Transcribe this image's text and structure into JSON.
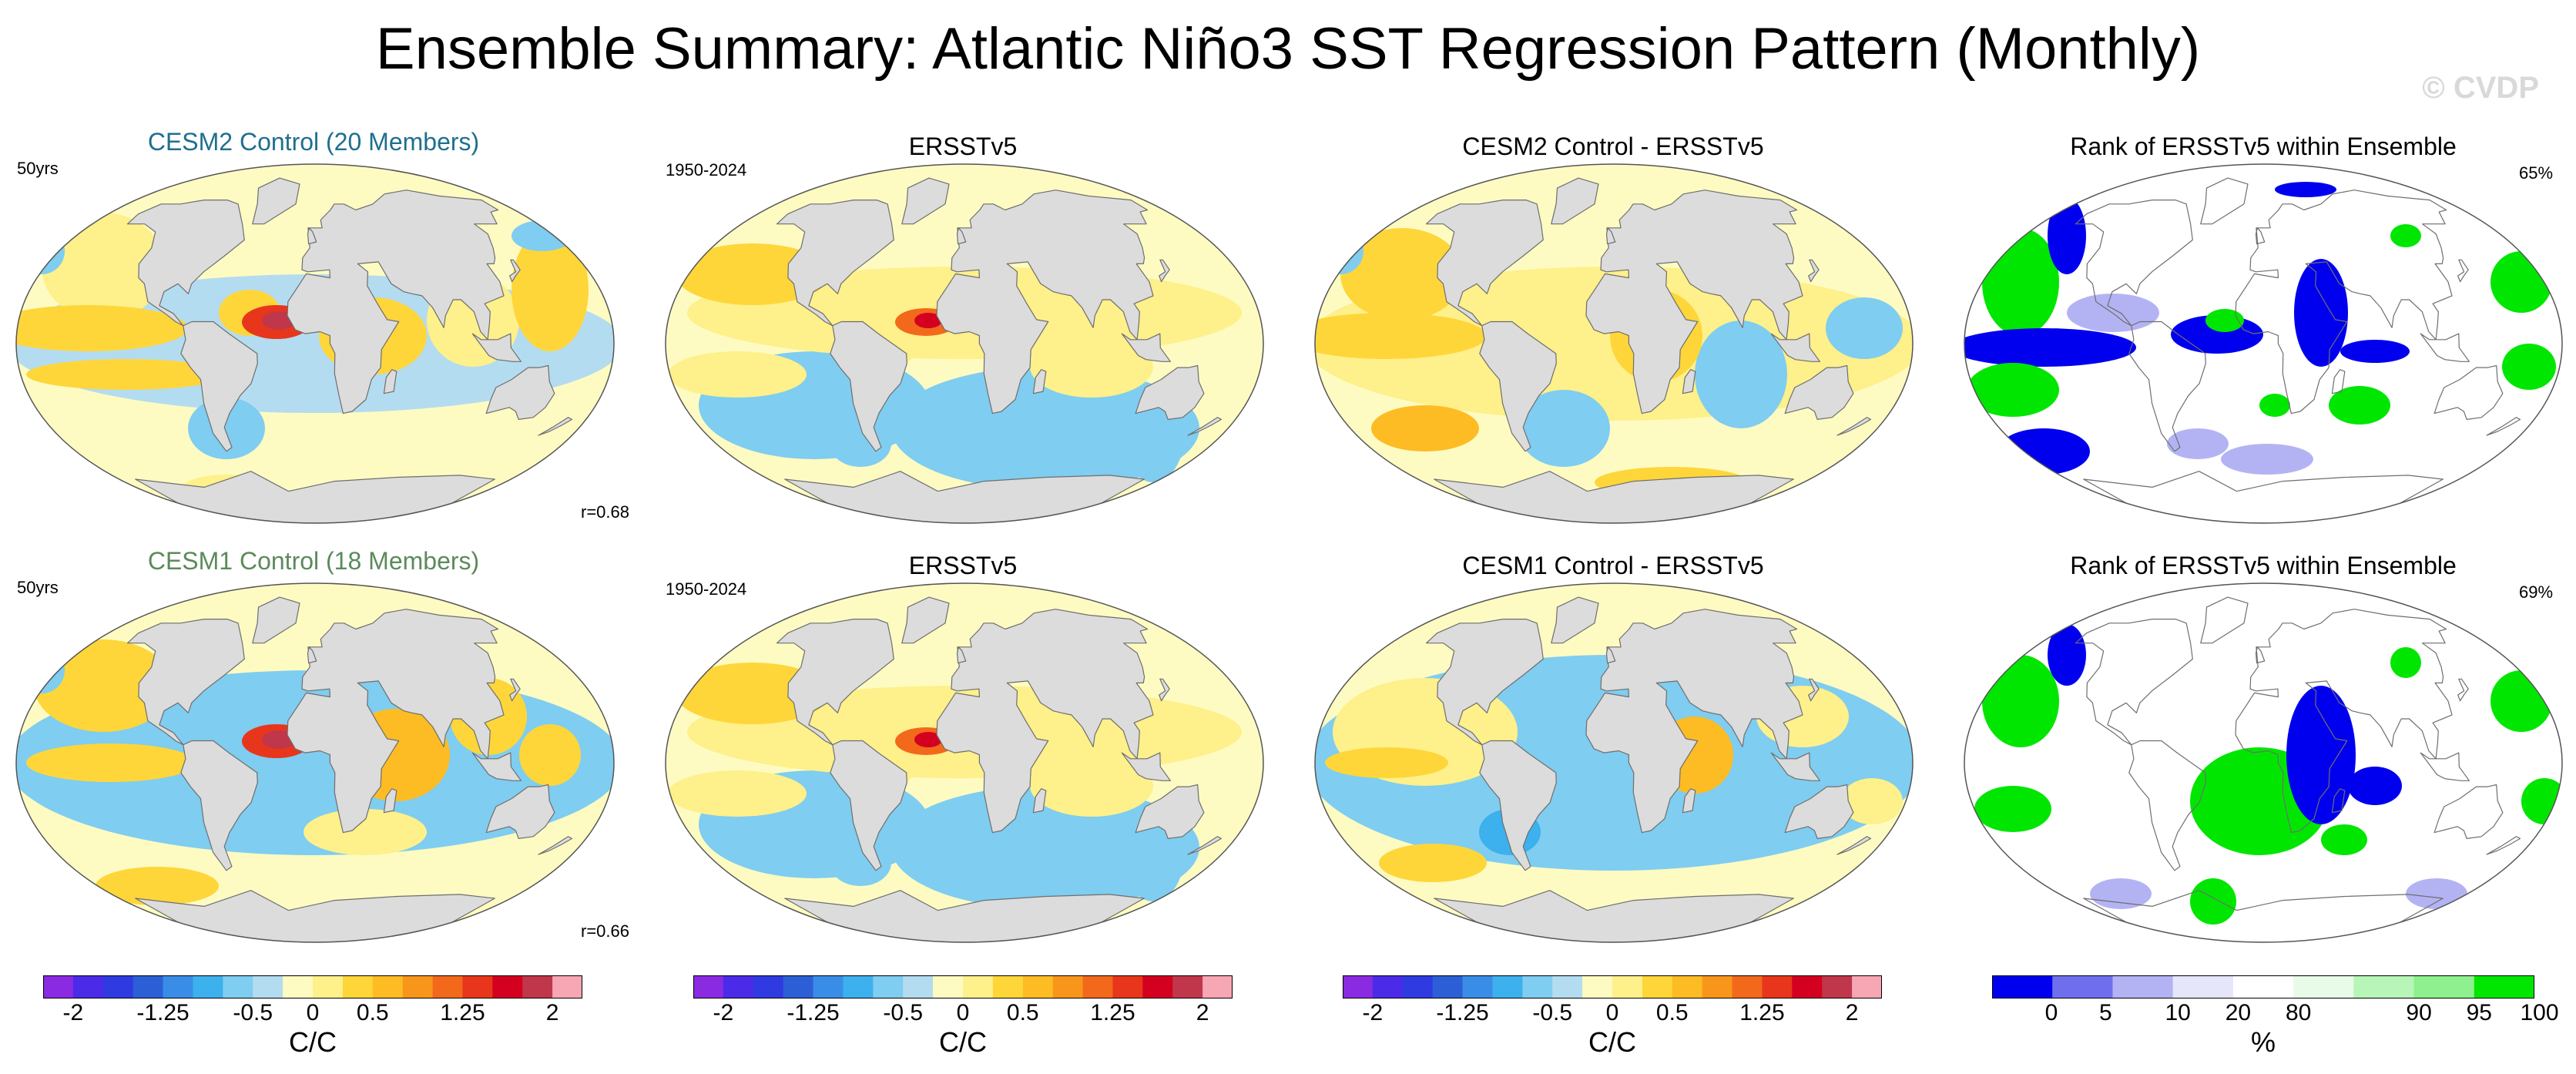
{
  "figure": {
    "title": "Ensemble Summary: Atlantic Niño3 SST Regression Pattern (Monthly)",
    "watermark": "© CVDP"
  },
  "colors": {
    "land": "#dcdcdc",
    "coast": "#6e6e6e",
    "title_cesm2": "#1f6f8f",
    "title_cesm1": "#5c8a5c",
    "regression_palette": [
      "#8a2be2",
      "#4b2ae8",
      "#2f3be0",
      "#2c5fd6",
      "#3a8de6",
      "#3db0ee",
      "#7fcdf0",
      "#b4dcf0",
      "#fefbc2",
      "#fef08a",
      "#fed63a",
      "#fdbc24",
      "#f8961b",
      "#f2691c",
      "#e8361c",
      "#d4001f",
      "#c0364a",
      "#f7a6b4"
    ],
    "rank_palette": [
      "#0000ee",
      "#6f6fee",
      "#b3b3f4",
      "#e6e6fa",
      "#ffffff",
      "#e8fbe8",
      "#b8f5b8",
      "#8ef08e",
      "#00e600"
    ]
  },
  "rows": [
    {
      "model_title": "CESM2 Control (20 Members)",
      "model_title_color": "#1f6f8f",
      "model_length": "50yrs",
      "model_r": "r=0.68",
      "obs_title": "ERSSTv5",
      "obs_period": "1950-2024",
      "diff_title": "CESM2 Control - ERSSTv5",
      "rank_title": "Rank of ERSSTv5 within Ensemble",
      "rank_pct": "65%"
    },
    {
      "model_title": "CESM1 Control (18 Members)",
      "model_title_color": "#5c8a5c",
      "model_length": "50yrs",
      "model_r": "r=0.66",
      "obs_title": "ERSSTv5",
      "obs_period": "1950-2024",
      "diff_title": "CESM1 Control - ERSSTv5",
      "rank_title": "Rank of ERSSTv5 within Ensemble",
      "rank_pct": "69%"
    }
  ],
  "colorbars": {
    "regression": {
      "tick_labels": [
        "-2",
        "-1.25",
        "-0.5",
        "0",
        "0.5",
        "1.25",
        "2"
      ],
      "units": "C/C"
    },
    "rank": {
      "tick_labels": [
        "0",
        "5",
        "10",
        "20",
        "80",
        "90",
        "95",
        "100"
      ],
      "units": "%"
    }
  }
}
